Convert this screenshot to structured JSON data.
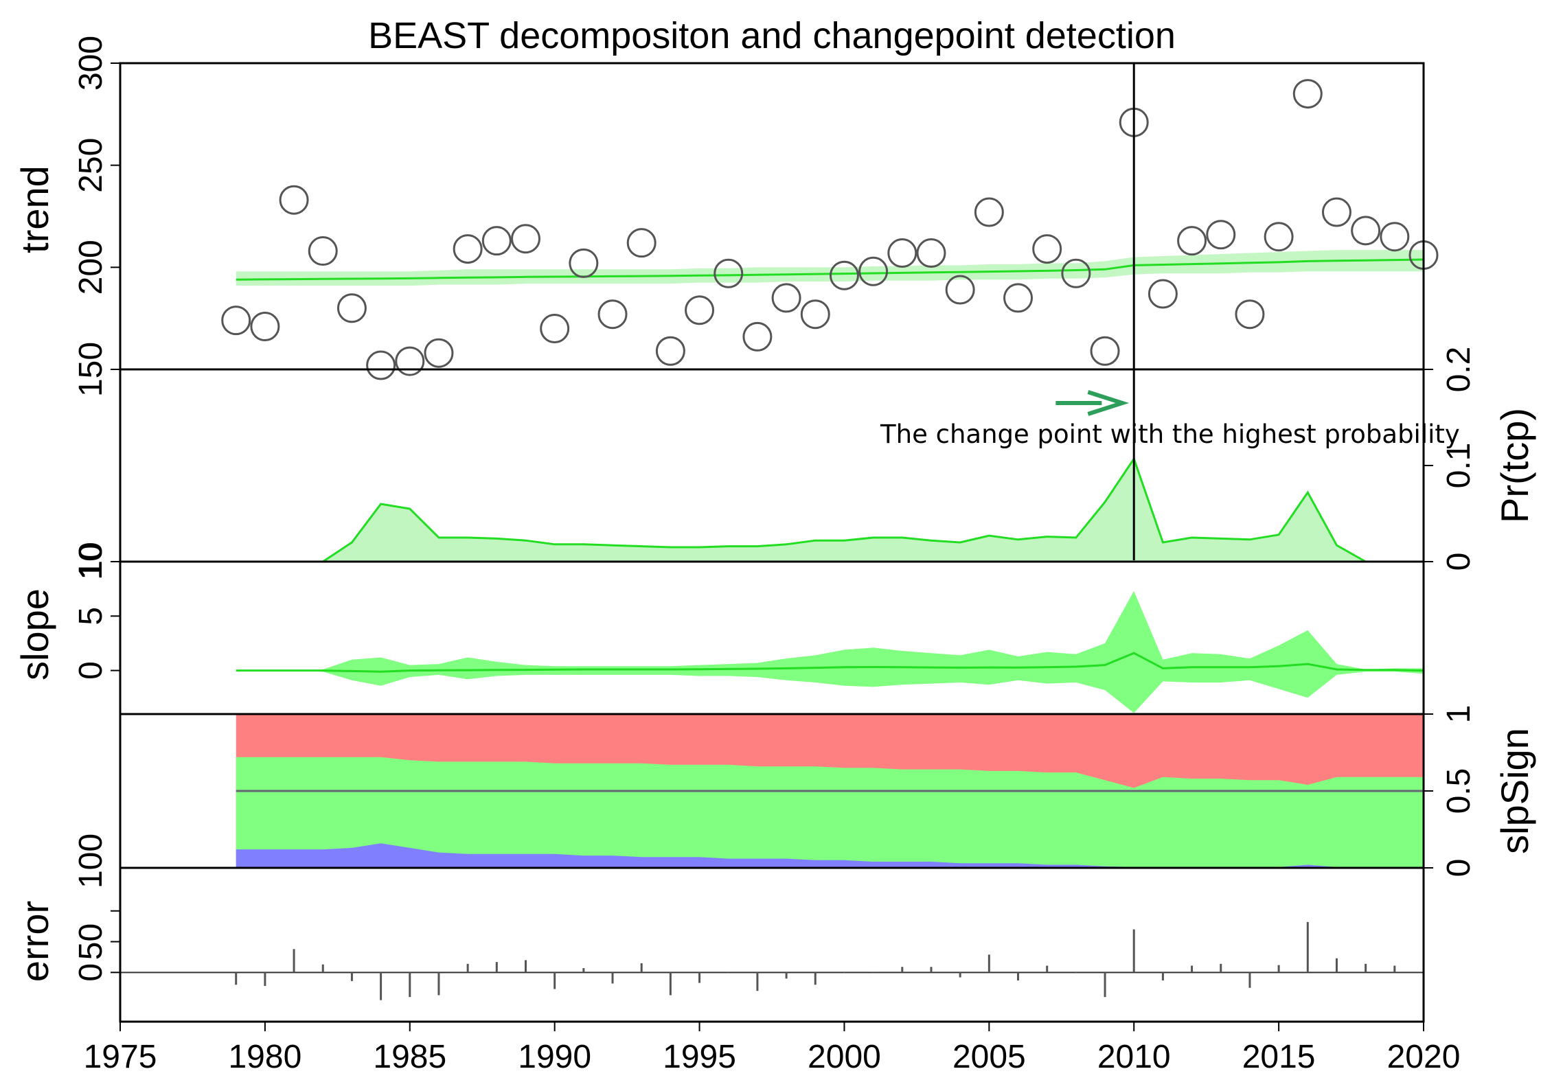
{
  "chart_data": {
    "type": "multi-panel",
    "title": "BEAST decompositon and changepoint detection",
    "x_axis": {
      "range": [
        1975,
        2020
      ],
      "ticks": [
        "1975",
        "1980",
        "1985",
        "1990",
        "1995",
        "2000",
        "2005",
        "2010",
        "2015",
        "2020"
      ]
    },
    "years": [
      1979,
      1980,
      1981,
      1982,
      1983,
      1984,
      1985,
      1986,
      1987,
      1988,
      1989,
      1990,
      1991,
      1992,
      1993,
      1994,
      1995,
      1996,
      1997,
      1998,
      1999,
      2000,
      2001,
      2002,
      2003,
      2004,
      2005,
      2006,
      2007,
      2008,
      2009,
      2010,
      2011,
      2012,
      2013,
      2014,
      2015,
      2016,
      2017,
      2018,
      2019,
      2020
    ],
    "changepoint_line_year": 2010,
    "annotation": {
      "text": "The change point with the highest probability",
      "color": "#2e9e5b"
    },
    "colors": {
      "green_line": "#22dd22",
      "green_band": "#b6f5b6",
      "green_fill": "#80ff80",
      "red_fill": "#ff8080",
      "blue_fill": "#8080ff",
      "point_stroke": "#555555",
      "error_bar": "#555555"
    },
    "panels": [
      {
        "name": "trend",
        "ylabel": "trend",
        "ylim": [
          150,
          300
        ],
        "left_ticks": [
          "150",
          "200",
          "250",
          "300"
        ],
        "observed": [
          174,
          171,
          233,
          208,
          180,
          152,
          154,
          158,
          209,
          213,
          214,
          170,
          202,
          177,
          212,
          159,
          179,
          197,
          166,
          185,
          177,
          196,
          198,
          207,
          207,
          189,
          227,
          185,
          209,
          197,
          159,
          271,
          187,
          213,
          216,
          177,
          215,
          285,
          227,
          218,
          215,
          206
        ],
        "series": [
          {
            "name": "trend",
            "values": [
              194,
              194.1,
              194.2,
              194.3,
              194.4,
              194.5,
              194.6,
              194.8,
              195,
              195.1,
              195.3,
              195.4,
              195.5,
              195.6,
              195.7,
              195.8,
              196,
              196.1,
              196.3,
              196.5,
              196.7,
              196.9,
              197.1,
              197.3,
              197.5,
              197.7,
              197.9,
              198.1,
              198.3,
              198.6,
              199,
              201,
              201.3,
              201.6,
              201.9,
              202.2,
              202.5,
              203,
              203.2,
              203.4,
              203.6,
              203.8
            ]
          },
          {
            "name": "ci_upper",
            "values": [
              198,
              198,
              198,
              198,
              198,
              198,
              198,
              198.5,
              199,
              199,
              199,
              199,
              199,
              199,
              199,
              199,
              199.5,
              199.5,
              200,
              200,
              200,
              200,
              200.5,
              200.5,
              201,
              201,
              201.5,
              201.5,
              202,
              202,
              203,
              205,
              205.5,
              206,
              206.5,
              207,
              207.5,
              208,
              208.5,
              208.5,
              208.5,
              208.5
            ]
          },
          {
            "name": "ci_lower",
            "values": [
              191,
              191,
              191,
              191,
              191,
              191,
              191,
              191.5,
              191.5,
              191.5,
              192,
              192,
              192,
              192,
              192,
              192,
              192.5,
              192.5,
              192.5,
              193,
              193,
              193,
              193.5,
              193.5,
              193.5,
              194,
              194,
              194,
              194.5,
              194.5,
              195,
              196.5,
              197,
              197,
              197,
              197.5,
              197.5,
              198,
              198,
              198,
              198,
              198
            ]
          }
        ]
      },
      {
        "name": "prob",
        "ylabel": "Pr(tcp)",
        "ylim": [
          0,
          0.2
        ],
        "right_ticks": [
          "0",
          "0.1",
          "0.2"
        ],
        "left_tick_top": "10",
        "series": [
          {
            "name": "Pr(tcp)",
            "values": [
              0,
              0,
              0,
              0,
              0.02,
              0.06,
              0.055,
              0.025,
              0.025,
              0.024,
              0.022,
              0.018,
              0.018,
              0.017,
              0.016,
              0.015,
              0.015,
              0.016,
              0.016,
              0.018,
              0.022,
              0.022,
              0.025,
              0.025,
              0.022,
              0.02,
              0.027,
              0.023,
              0.026,
              0.025,
              0.062,
              0.107,
              0.02,
              0.025,
              0.024,
              0.023,
              0.028,
              0.072,
              0.017,
              0,
              0,
              0
            ]
          }
        ]
      },
      {
        "name": "slope",
        "ylabel": "slope",
        "ylim": [
          -4,
          10
        ],
        "left_ticks": [
          "0",
          "5",
          "10"
        ],
        "series": [
          {
            "name": "slope",
            "values": [
              0,
              0,
              0,
              0,
              -0.05,
              -0.1,
              0,
              0.02,
              0.03,
              0.05,
              0.06,
              0.08,
              0.1,
              0.1,
              0.1,
              0.1,
              0.12,
              0.14,
              0.16,
              0.2,
              0.25,
              0.3,
              0.32,
              0.3,
              0.28,
              0.26,
              0.28,
              0.27,
              0.3,
              0.35,
              0.5,
              1.6,
              0.2,
              0.3,
              0.3,
              0.3,
              0.4,
              0.6,
              0.1,
              0.05,
              0.05,
              0
            ]
          },
          {
            "name": "ci_upper",
            "values": [
              0,
              0,
              0,
              0.1,
              1,
              1.2,
              0.5,
              0.6,
              1.2,
              0.8,
              0.5,
              0.4,
              0.4,
              0.4,
              0.4,
              0.4,
              0.5,
              0.6,
              0.7,
              1.1,
              1.4,
              1.9,
              2.1,
              1.8,
              1.6,
              1.4,
              1.9,
              1.3,
              1.7,
              1.5,
              2.5,
              7.3,
              1,
              1.6,
              1.5,
              1.1,
              2.3,
              3.7,
              0.6,
              0.1,
              0.2,
              0.2
            ]
          },
          {
            "name": "ci_lower",
            "values": [
              0,
              0,
              0,
              -0.1,
              -0.9,
              -1.4,
              -0.6,
              -0.4,
              -0.8,
              -0.5,
              -0.4,
              -0.4,
              -0.4,
              -0.4,
              -0.4,
              -0.4,
              -0.5,
              -0.5,
              -0.6,
              -0.9,
              -1.1,
              -1.4,
              -1.5,
              -1.3,
              -1.2,
              -1.1,
              -1.3,
              -0.9,
              -1.2,
              -1.1,
              -1.8,
              -3.9,
              -1,
              -1.1,
              -1.1,
              -0.9,
              -1.7,
              -2.5,
              -0.4,
              -0.1,
              -0.1,
              -0.3
            ]
          }
        ]
      },
      {
        "name": "slpSign",
        "ylabel": "slpSign",
        "ylim": [
          0,
          1
        ],
        "right_ticks": [
          "0",
          "0.5",
          "1"
        ],
        "left_tick_top": "100",
        "reference_line": 0.5,
        "series": [
          {
            "name": "negative (blue, bottom)",
            "values": [
              0.12,
              0.12,
              0.12,
              0.12,
              0.13,
              0.16,
              0.13,
              0.1,
              0.09,
              0.09,
              0.09,
              0.09,
              0.08,
              0.08,
              0.07,
              0.07,
              0.07,
              0.06,
              0.06,
              0.06,
              0.05,
              0.05,
              0.04,
              0.04,
              0.04,
              0.03,
              0.03,
              0.03,
              0.02,
              0.02,
              0.01,
              0.005,
              0.005,
              0.005,
              0.005,
              0.005,
              0.005,
              0.02,
              0.005,
              0.005,
              0.005,
              0.005
            ]
          },
          {
            "name": "positive cumulative (green top)",
            "values": [
              0.72,
              0.72,
              0.72,
              0.72,
              0.72,
              0.72,
              0.7,
              0.69,
              0.69,
              0.69,
              0.69,
              0.68,
              0.68,
              0.68,
              0.68,
              0.67,
              0.67,
              0.67,
              0.66,
              0.66,
              0.66,
              0.65,
              0.65,
              0.64,
              0.64,
              0.64,
              0.63,
              0.63,
              0.62,
              0.62,
              0.57,
              0.52,
              0.59,
              0.58,
              0.58,
              0.57,
              0.57,
              0.54,
              0.59,
              0.59,
              0.59,
              0.59
            ]
          }
        ]
      },
      {
        "name": "error",
        "ylabel": "error",
        "ylim": [
          -80,
          170
        ],
        "left_ticks": [
          "0",
          "50",
          "100"
        ],
        "series": [
          {
            "name": "error",
            "values": [
              -20,
              -22,
              38,
              13,
              -14,
              -45,
              -40,
              -37,
              14,
              17,
              20,
              -27,
              7,
              -18,
              15,
              -37,
              -17,
              1,
              -30,
              -10,
              -20,
              -1,
              1,
              9,
              9,
              -8,
              29,
              -13,
              11,
              -1,
              -40,
              70,
              -13,
              11,
              14,
              -25,
              12,
              82,
              23,
              14,
              11,
              2
            ]
          }
        ]
      }
    ]
  }
}
